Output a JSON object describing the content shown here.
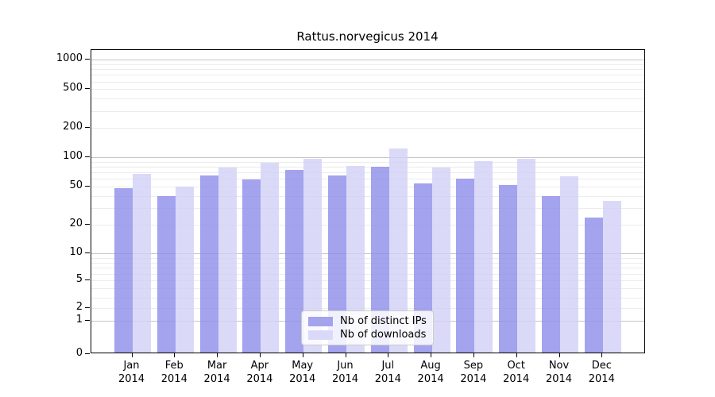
{
  "title": "Rattus.norvegicus 2014",
  "year_label": "2014",
  "legend": {
    "items": [
      {
        "label": "Nb of distinct IPs",
        "swatch": "#a3a3ee"
      },
      {
        "label": "Nb of downloads",
        "swatch": "#dadaf8"
      }
    ]
  },
  "axis": {
    "yticks": [
      1000,
      500,
      200,
      100,
      50,
      20,
      10,
      5,
      2,
      1,
      0
    ],
    "major_gridlines": [
      1,
      10,
      100,
      1000
    ],
    "minor_gridlines": [
      2,
      3,
      4,
      5,
      6,
      7,
      8,
      9,
      20,
      30,
      40,
      50,
      60,
      70,
      80,
      90,
      200,
      300,
      400,
      500,
      600,
      700,
      800,
      900
    ],
    "major_grid_color": "#c6c6c6",
    "minor_grid_color": "#ececec"
  },
  "chart_data": {
    "type": "bar",
    "title": "Rattus.norvegicus 2014",
    "xlabel": "",
    "ylabel": "",
    "yscale": "asinh-log",
    "ylim": [
      0,
      1100
    ],
    "grid": true,
    "legend_position": "lower center-left",
    "categories": [
      "Jan",
      "Feb",
      "Mar",
      "Apr",
      "May",
      "Jun",
      "Jul",
      "Aug",
      "Sep",
      "Oct",
      "Nov",
      "Dec"
    ],
    "series": [
      {
        "name": "Nb of distinct IPs",
        "fill": "rgba(140,140,234,0.8)",
        "color": "#a3a3ee",
        "values": [
          46,
          38,
          62,
          57,
          71,
          62,
          77,
          52,
          58,
          50,
          38,
          23
        ]
      },
      {
        "name": "Nb of downloads",
        "fill": "rgba(209,209,246,0.8)",
        "color": "#dadaf8",
        "values": [
          65,
          48,
          75,
          85,
          93,
          79,
          118,
          75,
          88,
          93,
          61,
          34
        ]
      }
    ]
  }
}
